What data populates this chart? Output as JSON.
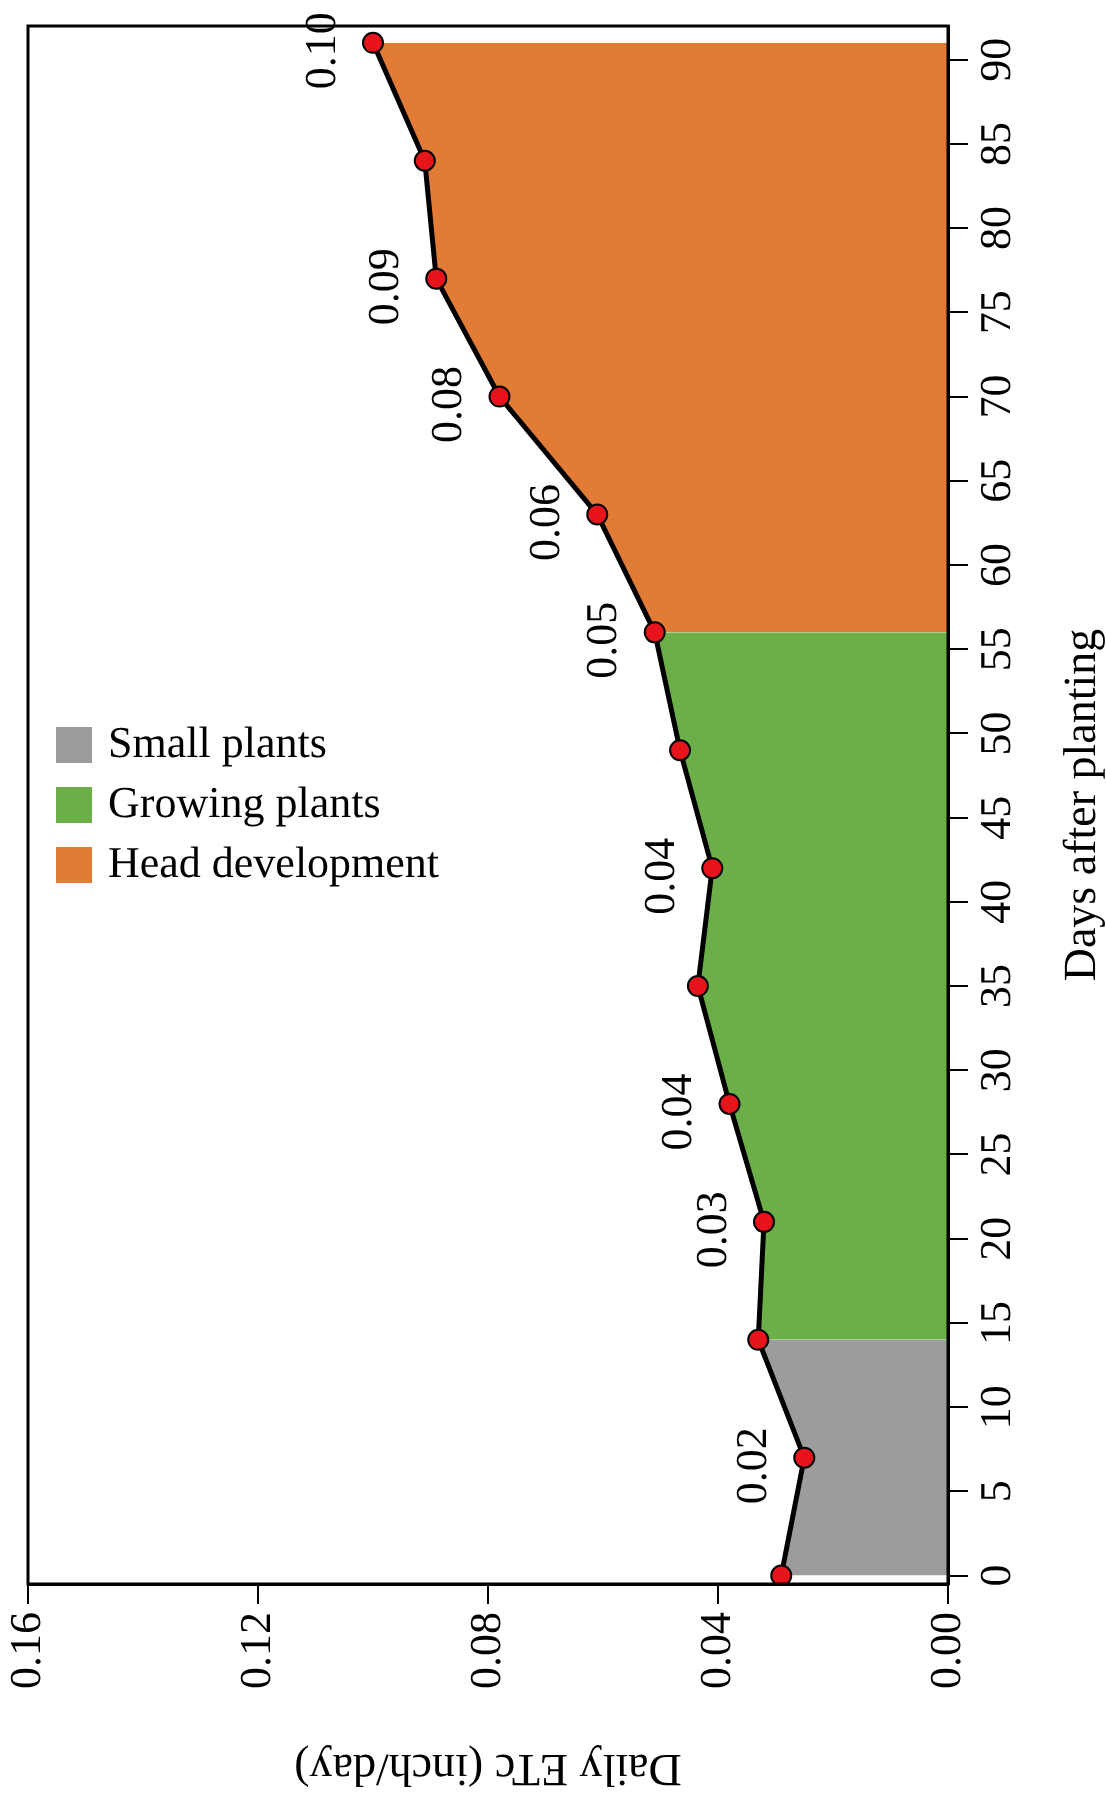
{
  "chart_data": {
    "type": "area",
    "orientation": "horizontal",
    "xlabel": "Daily ETc (inch/day)",
    "ylabel": "Days after planting",
    "xlim": [
      0.16,
      0
    ],
    "xticks": [
      0.16,
      0.12,
      0.08,
      0.04,
      {
        "value": 0,
        "label": "0.00"
      }
    ],
    "ylim": [
      -0.5,
      92
    ],
    "yticks": [
      0,
      5,
      10,
      15,
      20,
      25,
      30,
      35,
      40,
      45,
      50,
      55,
      60,
      65,
      70,
      75,
      80,
      85,
      90
    ],
    "grid": false,
    "legend": "left",
    "line_style": "solid",
    "series": [
      {
        "name": "Small plants",
        "color": "#9c9c9c",
        "x": [
          0,
          7,
          14
        ],
        "values": [
          0.029,
          0.025,
          0.033
        ]
      },
      {
        "name": "Growing plants",
        "color": "#6cae47",
        "x": [
          14,
          21,
          28,
          35,
          42,
          49,
          56
        ],
        "values": [
          0.033,
          0.032,
          0.038,
          0.0435,
          0.041,
          0.0466,
          0.051
        ]
      },
      {
        "name": "Head development",
        "color": "#e27b36",
        "x": [
          56,
          63,
          70,
          77,
          84,
          91
        ],
        "values": [
          0.051,
          0.061,
          0.078,
          0.089,
          0.091,
          0.1
        ]
      },
      {
        "type": "scatter",
        "color": "#e8141c",
        "x": [
          0,
          7,
          14,
          21,
          28,
          35,
          42,
          49,
          56,
          63,
          70,
          77,
          84,
          91
        ],
        "values": [
          0.029,
          0.025,
          0.033,
          0.032,
          0.038,
          0.0435,
          0.041,
          0.0466,
          0.051,
          0.061,
          0.078,
          0.089,
          0.091,
          0.1
        ],
        "value_labels": [
          null,
          "0.02",
          null,
          "0.03",
          "0.04",
          null,
          "0.04",
          null,
          "0.05",
          "0.06",
          "0.08",
          "0.09",
          null,
          "0.10"
        ]
      }
    ]
  }
}
